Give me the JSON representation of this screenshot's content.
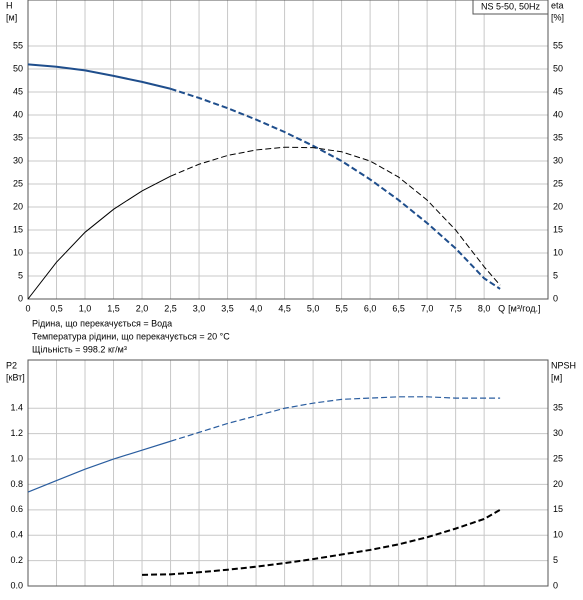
{
  "chart_data": [
    {
      "type": "line",
      "title": "NS 5-50, 50Hz",
      "ylabel": [
        "H",
        "[м]"
      ],
      "y2label": [
        "eta",
        "[%]"
      ],
      "xlabel": [
        "Q",
        "[м³/год.]"
      ],
      "notes": [
        "Рідина, що перекачується = Вода",
        "Температура рідини, що перекачується = 20 °C",
        "Щільність = 998.2 кг/м³"
      ],
      "xlim": [
        0,
        9.12
      ],
      "xticks": [
        0,
        {
          "value": 0.5,
          "label": "0,5"
        },
        {
          "value": 1,
          "label": "1,0"
        },
        {
          "value": 1.5,
          "label": "1,5"
        },
        {
          "value": 2,
          "label": "2,0"
        },
        {
          "value": 2.5,
          "label": "2,5"
        },
        {
          "value": 3,
          "label": "3,0"
        },
        {
          "value": 3.5,
          "label": "3,5"
        },
        {
          "value": 4,
          "label": "4,0"
        },
        {
          "value": 4.5,
          "label": "4,5"
        },
        {
          "value": 5,
          "label": "5,0"
        },
        {
          "value": 5.5,
          "label": "5,5"
        },
        {
          "value": 6,
          "label": "6,0"
        },
        {
          "value": 6.5,
          "label": "6,5"
        },
        {
          "value": 7,
          "label": "7,0"
        },
        {
          "value": 7.5,
          "label": "7,5"
        },
        {
          "value": 8,
          "label": "8,0"
        }
      ],
      "ylim": [
        0,
        65
      ],
      "yticks": [
        0,
        5,
        10,
        15,
        20,
        25,
        30,
        35,
        40,
        45,
        50,
        55
      ],
      "y2lim": [
        0,
        65
      ],
      "y2ticks": [
        0,
        5,
        10,
        15,
        20,
        25,
        30,
        35,
        40,
        45,
        50,
        55
      ],
      "grid": true,
      "series": [
        {
          "color": "#1f4e8c",
          "width": 2,
          "dash": false,
          "axis": "y",
          "x": [
            0,
            0.5,
            1,
            1.5,
            2,
            2.5
          ],
          "values": [
            51,
            50.5,
            49.7,
            48.5,
            47.2,
            45.7
          ]
        },
        {
          "color": "#1f4e8c",
          "width": 2,
          "dash": true,
          "axis": "y",
          "x": [
            2.5,
            3,
            3.5,
            4,
            4.5,
            5,
            5.5,
            6,
            6.5,
            7,
            7.5,
            8,
            8.28
          ],
          "values": [
            45.7,
            43.7,
            41.5,
            39,
            36.3,
            33.3,
            30,
            26,
            21.5,
            16.5,
            11,
            4.5,
            2.2
          ]
        },
        {
          "color": "#000000",
          "width": 1,
          "dash": false,
          "axis": "y2",
          "x": [
            0,
            0.5,
            1,
            1.5,
            2,
            2.5
          ],
          "values": [
            0,
            8,
            14.5,
            19.5,
            23.5,
            26.7
          ]
        },
        {
          "color": "#000000",
          "width": 1,
          "dash": true,
          "axis": "y2",
          "x": [
            2.5,
            3,
            3.5,
            4,
            4.5,
            5,
            5.5,
            6,
            6.5,
            7,
            7.5,
            8,
            8.28
          ],
          "values": [
            26.7,
            29.3,
            31.2,
            32.4,
            33,
            32.9,
            32,
            30,
            26.5,
            21.5,
            15,
            7,
            3
          ]
        }
      ]
    },
    {
      "type": "line",
      "ylabel": [
        "P2",
        "[кВт]"
      ],
      "y2label": [
        "NPSH",
        "[м]"
      ],
      "xlim": [
        0,
        9.12
      ],
      "ylim": [
        0,
        1.78
      ],
      "yticks": [
        {
          "value": 0,
          "label": "0.0"
        },
        {
          "value": 0.2,
          "label": "0.2"
        },
        {
          "value": 0.4,
          "label": "0.4"
        },
        {
          "value": 0.6,
          "label": "0.6"
        },
        {
          "value": 0.8,
          "label": "0.8"
        },
        {
          "value": 1,
          "label": "1.0"
        },
        {
          "value": 1.2,
          "label": "1.2"
        },
        {
          "value": 1.4,
          "label": "1.4"
        }
      ],
      "y2lim": [
        0,
        44.5
      ],
      "y2ticks": [
        0,
        5,
        10,
        15,
        20,
        25,
        30,
        35
      ],
      "grid": true,
      "series": [
        {
          "color": "#2a5d9f",
          "width": 1.2,
          "dash": false,
          "axis": "y",
          "x": [
            0,
            0.5,
            1,
            1.5,
            2,
            2.5
          ],
          "values": [
            0.74,
            0.83,
            0.92,
            1.0,
            1.07,
            1.14
          ]
        },
        {
          "color": "#2a5d9f",
          "width": 1.2,
          "dash": true,
          "axis": "y",
          "x": [
            2.5,
            3,
            3.5,
            4,
            4.5,
            5,
            5.5,
            6,
            6.5,
            7,
            7.5,
            8,
            8.28
          ],
          "values": [
            1.14,
            1.21,
            1.28,
            1.34,
            1.4,
            1.44,
            1.47,
            1.48,
            1.49,
            1.49,
            1.48,
            1.48,
            1.48
          ]
        },
        {
          "color": "#000000",
          "width": 2,
          "dash": true,
          "axis": "y2",
          "x": [
            2,
            2.5,
            3,
            3.5,
            4,
            4.5,
            5,
            5.5,
            6,
            6.5,
            7,
            7.5,
            8,
            8.28
          ],
          "values": [
            2.2,
            2.3,
            2.7,
            3.2,
            3.8,
            4.5,
            5.3,
            6.2,
            7.1,
            8.2,
            9.6,
            11.3,
            13.2,
            15
          ]
        }
      ]
    }
  ]
}
